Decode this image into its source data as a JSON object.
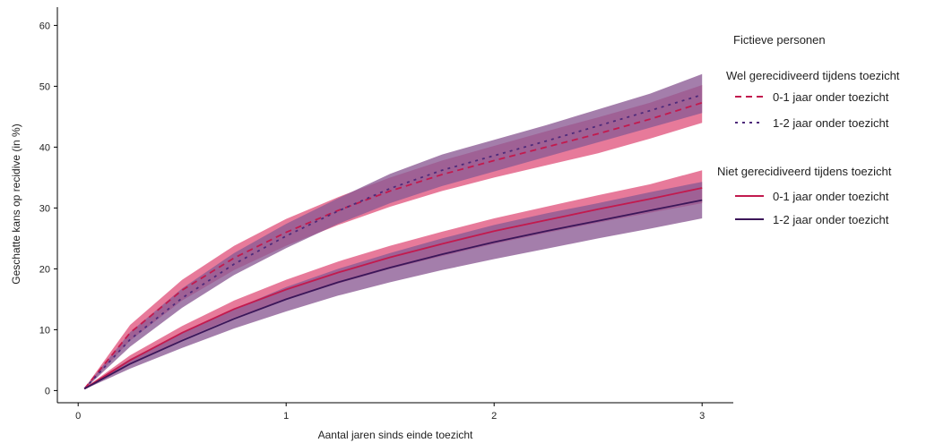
{
  "chart_data": {
    "type": "line",
    "title": "",
    "xlabel": "Aantal jaren sinds einde toezicht",
    "ylabel": "Geschatte kans op recidive (in %)",
    "xlim": [
      -0.1,
      3.15
    ],
    "ylim": [
      -2,
      63
    ],
    "x_ticks": [
      0,
      1,
      2,
      3
    ],
    "y_ticks": [
      0,
      10,
      20,
      30,
      40,
      50,
      60
    ],
    "x_tick_labels": [
      "0",
      "1",
      "2",
      "3"
    ],
    "y_tick_labels": [
      "0",
      "10",
      "20",
      "30",
      "40",
      "50",
      "60"
    ],
    "grid": false,
    "legend": {
      "title": "Fictieve personen",
      "placement": "right",
      "groups": [
        {
          "label": "Wel gerecidiveerd tijdens toezicht",
          "entries": [
            "0-1 jaar onder toezicht",
            "1-2 jaar onder toezicht"
          ]
        },
        {
          "label": "Niet gerecidiveerd tijdens toezicht",
          "entries": [
            "0-1 jaar onder toezicht",
            "1-2 jaar onder toezicht"
          ]
        }
      ]
    },
    "x": [
      0.03,
      0.25,
      0.5,
      0.75,
      1.0,
      1.25,
      1.5,
      1.75,
      2.0,
      2.25,
      2.5,
      2.75,
      3.0
    ],
    "series": [
      {
        "group": "Wel gerecidiveerd tijdens toezicht",
        "line_style": "dashed",
        "color": "#c21a4e",
        "band_color": "#e0547e",
        "values": [
          0.3,
          9.5,
          16.5,
          21.8,
          26.0,
          29.6,
          32.8,
          35.5,
          37.8,
          40.0,
          42.2,
          44.6,
          47.3
        ],
        "lower": [
          0.2,
          8.2,
          14.8,
          19.8,
          23.8,
          27.2,
          30.2,
          32.8,
          35.0,
          37.0,
          39.0,
          41.4,
          44.0
        ],
        "upper": [
          0.4,
          10.8,
          18.2,
          23.8,
          28.2,
          31.8,
          35.0,
          37.8,
          40.2,
          42.6,
          44.9,
          47.3,
          50.2
        ]
      },
      {
        "group": "Wel gerecidiveerd tijdens toezicht",
        "line_style": "dotted",
        "color": "#4e2a7a",
        "band_color": "#8a5a94",
        "values": [
          0.3,
          8.4,
          15.2,
          20.8,
          25.4,
          29.5,
          33.2,
          36.2,
          38.6,
          41.0,
          43.5,
          46.0,
          48.6
        ],
        "lower": [
          0.2,
          7.2,
          13.6,
          19.0,
          23.4,
          27.4,
          30.8,
          33.6,
          36.0,
          38.4,
          40.8,
          43.2,
          45.6
        ],
        "upper": [
          0.4,
          9.6,
          16.8,
          22.6,
          27.4,
          31.6,
          35.6,
          38.8,
          41.2,
          43.6,
          46.2,
          48.8,
          52.0
        ]
      },
      {
        "group": "Niet gerecidiveerd tijdens toezicht",
        "line_style": "solid",
        "color": "#c21a4e",
        "band_color": "#e0547e",
        "values": [
          0.3,
          5.0,
          9.5,
          13.4,
          16.6,
          19.4,
          21.9,
          24.1,
          26.2,
          28.0,
          29.8,
          31.5,
          33.3
        ],
        "lower": [
          0.2,
          4.2,
          8.4,
          12.0,
          15.0,
          17.6,
          20.0,
          22.1,
          24.1,
          25.9,
          27.6,
          29.2,
          30.8
        ],
        "upper": [
          0.4,
          5.8,
          10.6,
          14.8,
          18.2,
          21.2,
          23.8,
          26.1,
          28.3,
          30.2,
          32.1,
          33.9,
          36.2
        ]
      },
      {
        "group": "Niet gerecidiveerd tijdens toezicht",
        "line_style": "solid",
        "color": "#3b1659",
        "band_color": "#8a5a94",
        "values": [
          0.3,
          4.4,
          8.2,
          11.8,
          15.0,
          17.8,
          20.2,
          22.4,
          24.4,
          26.2,
          27.9,
          29.6,
          31.3
        ],
        "lower": [
          0.2,
          3.6,
          7.0,
          10.2,
          13.0,
          15.6,
          17.8,
          19.8,
          21.6,
          23.3,
          25.0,
          26.6,
          28.3
        ],
        "upper": [
          0.4,
          5.2,
          9.4,
          13.4,
          17.0,
          20.0,
          22.6,
          25.0,
          27.2,
          29.1,
          30.8,
          32.6,
          34.3
        ]
      }
    ]
  }
}
